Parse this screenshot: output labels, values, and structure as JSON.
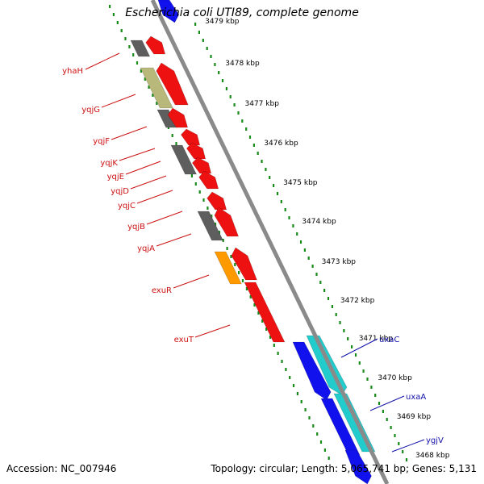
{
  "title": "Escherichia coli UTI89, complete genome",
  "footer": {
    "accession": "Accession: NC_007946",
    "summary": "Topology: circular; Length: 5,065,741 bp; Genes: 5,131"
  },
  "colors": {
    "backbone": "#8a8a8a",
    "scale_dots": "#1a8a1a",
    "cds": "#ee1111",
    "orange": "#ff9900",
    "olive": "#b8b87a",
    "gray": "#5e5e5e",
    "blue": "#1111ee",
    "cyan": "#22cccc",
    "label_red": "#cc1111",
    "label_blue": "#1111aa"
  },
  "ticks": [
    {
      "label": "3479 kbp"
    },
    {
      "label": "3478 kbp"
    },
    {
      "label": "3477 kbp"
    },
    {
      "label": "3476 kbp"
    },
    {
      "label": "3475 kbp"
    },
    {
      "label": "3474 kbp"
    },
    {
      "label": "3473 kbp"
    },
    {
      "label": "3472 kbp"
    },
    {
      "label": "3471 kbp"
    },
    {
      "label": "3470 kbp"
    },
    {
      "label": "3469 kbp"
    },
    {
      "label": "3468 kbp"
    }
  ],
  "left_labels": [
    {
      "name": "yhaH"
    },
    {
      "name": "yqjG"
    },
    {
      "name": "yqjF"
    },
    {
      "name": "yqjK"
    },
    {
      "name": "yqjE"
    },
    {
      "name": "yqjD"
    },
    {
      "name": "yqjC"
    },
    {
      "name": "yqjB"
    },
    {
      "name": "yqjA"
    },
    {
      "name": "exuR"
    },
    {
      "name": "exuT"
    }
  ],
  "right_labels": [
    {
      "name": "uxaC"
    },
    {
      "name": "uxaA"
    },
    {
      "name": "ygjV"
    }
  ]
}
